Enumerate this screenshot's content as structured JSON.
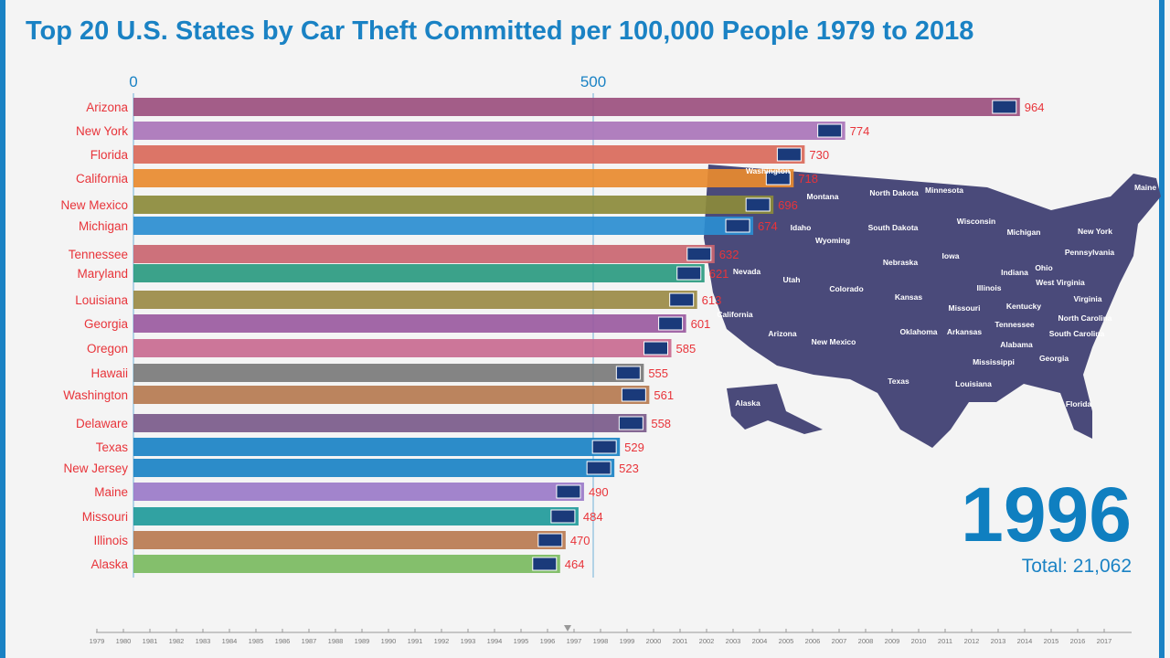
{
  "title": "Top 20 U.S. States by Car Theft Committed per 100,000 People 1979 to 2018",
  "year": "1996",
  "total_label": "Total: 21,062",
  "chart_data": {
    "type": "bar",
    "orientation": "horizontal",
    "title": "Top 20 U.S. States by Car Theft Committed per 100,000 People 1979 to 2018",
    "xlim": [
      0,
      1000
    ],
    "xticks": [
      0,
      500
    ],
    "grid": "vertical at ticks",
    "categories": [
      "Arizona",
      "New York",
      "Florida",
      "California",
      "New Mexico",
      "Michigan",
      "Tennessee",
      "Maryland",
      "Louisiana",
      "Georgia",
      "Oregon",
      "Hawaii",
      "Washington",
      "Delaware",
      "Texas",
      "New Jersey",
      "Maine",
      "Missouri",
      "Illinois",
      "Alaska"
    ],
    "values": [
      964,
      774,
      730,
      718,
      696,
      674,
      632,
      621,
      613,
      601,
      585,
      555,
      561,
      558,
      529,
      523,
      490,
      484,
      470,
      464
    ],
    "colors": [
      "#9b4f7e",
      "#a974b8",
      "#d9695a",
      "#e88a2e",
      "#8b8a3a",
      "#2a8dd0",
      "#c96570",
      "#2a9a80",
      "#9a8a45",
      "#9a5aa0",
      "#c86a90",
      "#7a7a7a",
      "#b57a50",
      "#7a5a8a",
      "#1a82c4",
      "#1a82c4",
      "#9a7ac8",
      "#1f9a9a",
      "#b87a50",
      "#7aba60"
    ],
    "timeline": [
      "1979",
      "1980",
      "1981",
      "1982",
      "1983",
      "1984",
      "1985",
      "1986",
      "1987",
      "1988",
      "1989",
      "1990",
      "1991",
      "1992",
      "1993",
      "1994",
      "1995",
      "1996",
      "1997",
      "1998",
      "1999",
      "2000",
      "2001",
      "2002",
      "2003",
      "2004",
      "2005",
      "2006",
      "2007",
      "2008",
      "2009",
      "2010",
      "2011",
      "2012",
      "2013",
      "2014",
      "2015",
      "2016",
      "2017"
    ],
    "current_year": "1996"
  },
  "map": {
    "color": "#4a4a7a",
    "labels": [
      "Montana",
      "North Dakota",
      "Minnesota",
      "Maine",
      "Idaho",
      "South Dakota",
      "Wisconsin",
      "Michigan",
      "New York",
      "Wyoming",
      "Iowa",
      "Pennsylvania",
      "Nebraska",
      "Ohio",
      "Indiana",
      "Nevada",
      "Utah",
      "Colorado",
      "Kansas",
      "Illinois",
      "West Virginia",
      "Virginia",
      "Missouri",
      "Kentucky",
      "California",
      "North Carolina",
      "Tennessee",
      "Arizona",
      "New Mexico",
      "Oklahoma",
      "Arkansas",
      "South Carolina",
      "Alabama",
      "Mississippi",
      "Georgia",
      "Texas",
      "Louisiana",
      "Alaska",
      "Florida",
      "Washington"
    ]
  }
}
